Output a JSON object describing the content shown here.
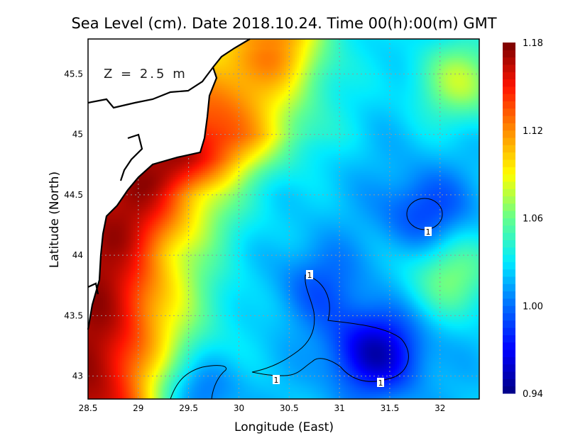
{
  "chart_data": {
    "type": "heatmap",
    "title": "Sea Level (cm). Date 2018.10.24. Time 00(h):00(m) GMT",
    "annotation": "Z = 2.5 m",
    "xlabel": "Longitude (East)",
    "ylabel": "Latitude (North)",
    "xlim": [
      28.5,
      32.39
    ],
    "ylim": [
      42.81,
      45.79
    ],
    "xticks": [
      "28.5",
      "29",
      "29.5",
      "30",
      "30.5",
      "31",
      "31.5",
      "32"
    ],
    "yticks": [
      "43",
      "43.5",
      "44",
      "44.5",
      "45",
      "45.5"
    ],
    "grid": true,
    "colorbar": {
      "range": [
        0.94,
        1.18
      ],
      "ticks": [
        "0.94",
        "1.00",
        "1.06",
        "1.12",
        "1.18"
      ],
      "position": "right"
    },
    "contour_level": 1,
    "contour_labels": [
      "1",
      "1",
      "1",
      "1"
    ],
    "background_value": 1.02,
    "field_features": [
      {
        "kind": "low",
        "lon": 31.35,
        "lat": 43.2,
        "value": 0.955
      },
      {
        "kind": "low",
        "lon": 31.85,
        "lat": 44.35,
        "value": 0.985
      },
      {
        "kind": "low",
        "lon": 29.5,
        "lat": 42.85,
        "value": 0.97
      },
      {
        "kind": "low",
        "lon": 30.8,
        "lat": 43.75,
        "value": 0.995
      },
      {
        "kind": "high",
        "lon": 32.2,
        "lat": 45.45,
        "value": 1.075
      },
      {
        "kind": "high",
        "lon": 32.1,
        "lat": 43.85,
        "value": 1.065
      },
      {
        "kind": "high",
        "lon": 30.4,
        "lat": 45.75,
        "value": 1.07
      },
      {
        "kind": "coastal-high",
        "value": 1.17
      }
    ]
  }
}
